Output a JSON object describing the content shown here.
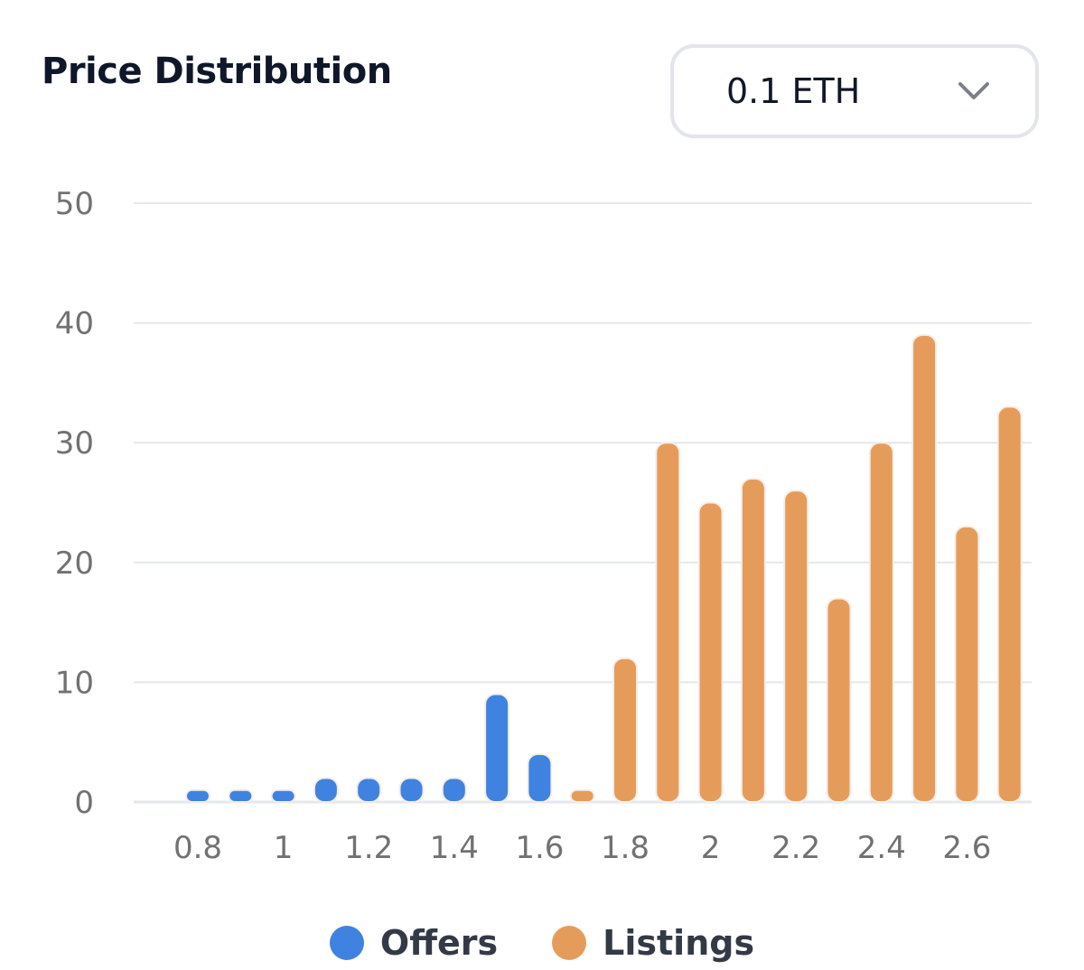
{
  "header": {
    "title": "Price Distribution",
    "select": {
      "value": "0.1 ETH",
      "icon": "chevron-down-icon"
    }
  },
  "colors": {
    "offers": "#4082e0",
    "listings": "#e59c5b",
    "grid": "#e6e7eb",
    "tick": "#717171"
  },
  "chart_data": {
    "type": "bar",
    "title": "Price Distribution",
    "xlabel": "",
    "ylabel": "",
    "ylim": [
      0,
      50
    ],
    "yticks": [
      0,
      10,
      20,
      30,
      40,
      50
    ],
    "xtick_labels": [
      "0.8",
      "1",
      "1.2",
      "1.4",
      "1.6",
      "1.8",
      "2",
      "2.2",
      "2.4",
      "2.6"
    ],
    "xtick_values": [
      0.8,
      1.0,
      1.2,
      1.4,
      1.6,
      1.8,
      2.0,
      2.2,
      2.4,
      2.6
    ],
    "grid": true,
    "legend": "bottom",
    "series": [
      {
        "name": "Offers",
        "x": [
          0.8,
          0.9,
          1.0,
          1.1,
          1.2,
          1.3,
          1.4,
          1.5,
          1.6
        ],
        "values": [
          1,
          1,
          1,
          2,
          2,
          2,
          2,
          9,
          4
        ]
      },
      {
        "name": "Listings",
        "x": [
          1.7,
          1.8,
          1.9,
          2.0,
          2.1,
          2.2,
          2.3,
          2.4,
          2.5,
          2.6,
          2.7
        ],
        "values": [
          1,
          12,
          30,
          25,
          27,
          26,
          17,
          30,
          39,
          23,
          33
        ]
      }
    ]
  }
}
